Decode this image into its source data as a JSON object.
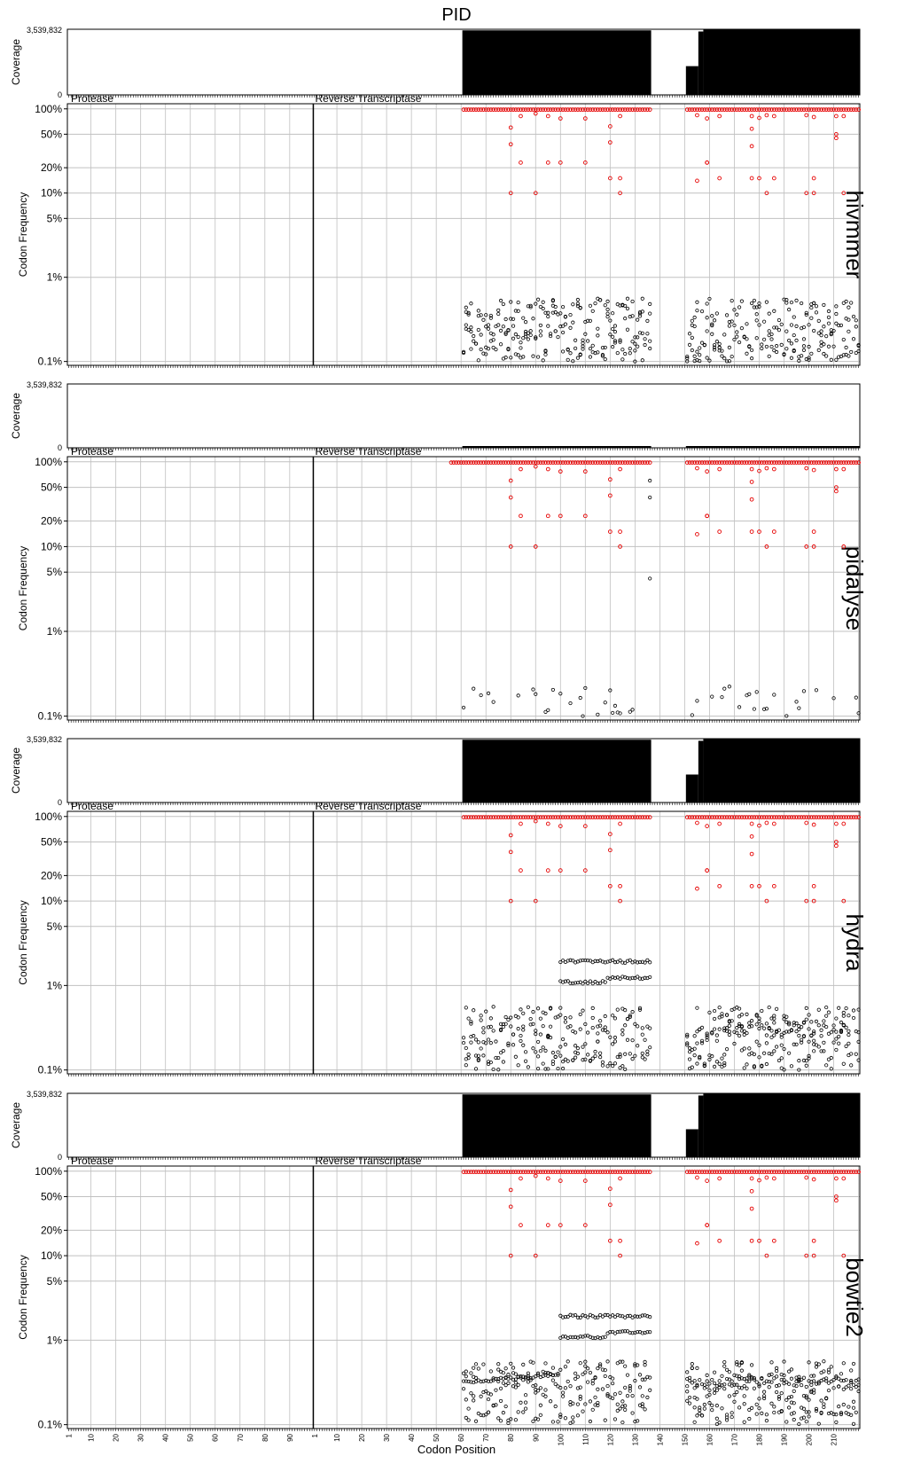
{
  "chart_data": {
    "type": "scatter",
    "title": "PID",
    "xlabel": "Codon Position",
    "coverage_ylabel": "Coverage",
    "frequency_ylabel": "Codon Frequency",
    "coverage_max_label": "3,539,832",
    "coverage_min_label": "0",
    "coverage_ylim": [
      0,
      3539832
    ],
    "freq_scale": "log",
    "freq_ylim": [
      0.09,
      115
    ],
    "freq_ticks": [
      {
        "value": 100,
        "label": "100%"
      },
      {
        "value": 50,
        "label": "50%"
      },
      {
        "value": 20,
        "label": "20%"
      },
      {
        "value": 10,
        "label": "10%"
      },
      {
        "value": 5,
        "label": "5%"
      },
      {
        "value": 1,
        "label": "1%"
      },
      {
        "value": 0.1,
        "label": "0.1%"
      }
    ],
    "regions": [
      {
        "name": "Protease",
        "codons": 99
      },
      {
        "name": "Reverse Transcriptase",
        "codons": 220
      }
    ],
    "x_tick_labels": {
      "protease": [
        "1",
        "10",
        "20",
        "30",
        "40",
        "50",
        "60",
        "70",
        "80",
        "90"
      ],
      "reverse_transcriptase": [
        "1",
        "10",
        "20",
        "30",
        "40",
        "50",
        "60",
        "70",
        "80",
        "90",
        "100",
        "110",
        "120",
        "130",
        "140",
        "150",
        "160",
        "170",
        "180",
        "190",
        "200",
        "210"
      ]
    },
    "grid": true,
    "colors": {
      "consensus": "#e60000",
      "minority": "#000000",
      "coverage": "#000000",
      "grid": "#c0c0c0"
    },
    "coverage_segments_full": [
      {
        "rt_start": 61,
        "rt_end": 136,
        "value": 3480000
      },
      {
        "rt_start": 151,
        "rt_end": 155,
        "value": 1550000
      },
      {
        "rt_start": 156,
        "rt_end": 157,
        "value": 3420000
      },
      {
        "rt_start": 158,
        "rt_end": 220,
        "value": 3539832
      }
    ],
    "coverage_segments_low": [
      {
        "rt_start": 61,
        "rt_end": 136,
        "value": 40000
      },
      {
        "rt_start": 151,
        "rt_end": 220,
        "value": 40000
      }
    ],
    "consensus_positions": [
      [
        61,
        136
      ],
      [
        151,
        220
      ]
    ],
    "mutation_positions": [
      {
        "rt": 80,
        "values": [
          60,
          38,
          10
        ]
      },
      {
        "rt": 84,
        "values": [
          82,
          23
        ]
      },
      {
        "rt": 90,
        "values": [
          88,
          10
        ]
      },
      {
        "rt": 95,
        "values": [
          82,
          23
        ]
      },
      {
        "rt": 100,
        "values": [
          77,
          23
        ]
      },
      {
        "rt": 110,
        "values": [
          77,
          23
        ]
      },
      {
        "rt": 120,
        "values": [
          62,
          40,
          15
        ]
      },
      {
        "rt": 124,
        "values": [
          82,
          15,
          10
        ]
      },
      {
        "rt": 155,
        "values": [
          84,
          14
        ]
      },
      {
        "rt": 159,
        "values": [
          77,
          23,
          23
        ]
      },
      {
        "rt": 164,
        "values": [
          82,
          15
        ]
      },
      {
        "rt": 177,
        "values": [
          82,
          58,
          36,
          15
        ]
      },
      {
        "rt": 180,
        "values": [
          78,
          15
        ]
      },
      {
        "rt": 183,
        "values": [
          84,
          10
        ]
      },
      {
        "rt": 186,
        "values": [
          82,
          15
        ]
      },
      {
        "rt": 199,
        "values": [
          84,
          10
        ]
      },
      {
        "rt": 202,
        "values": [
          80,
          15,
          10
        ]
      },
      {
        "rt": 211,
        "values": [
          82,
          50,
          45
        ]
      },
      {
        "rt": 214,
        "values": [
          82,
          10
        ]
      }
    ],
    "panels": [
      {
        "name": "hivmmer",
        "coverage": "full",
        "minority_pattern": "standard"
      },
      {
        "name": "pidalyse",
        "coverage": "low",
        "minority_pattern": "sparse"
      },
      {
        "name": "hydra",
        "coverage": "full",
        "minority_pattern": "bands"
      },
      {
        "name": "bowtie2",
        "coverage": "full",
        "minority_pattern": "bands_wide"
      }
    ]
  }
}
